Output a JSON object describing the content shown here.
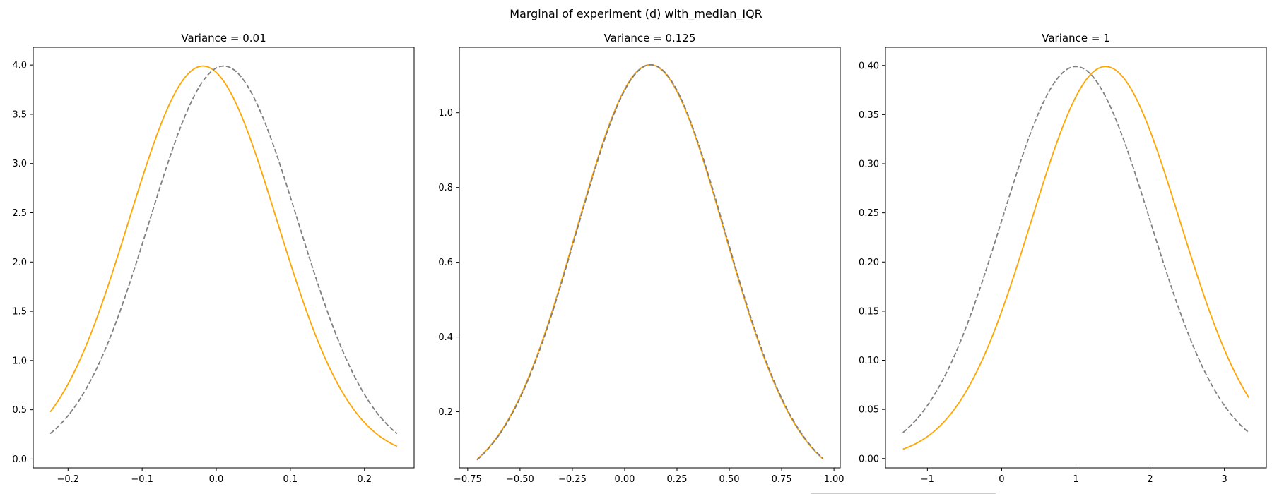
{
  "figure": {
    "suptitle": "Marginal of experiment (d) with_median_IQR"
  },
  "colors": {
    "primary_series": "#ffa500",
    "reference_series": "#808080",
    "axes": "#000000",
    "background": "#ffffff"
  },
  "chart_data": [
    {
      "type": "line",
      "title": "Variance = 0.01",
      "xlabel": "",
      "ylabel": "",
      "xlim": [
        -0.247,
        0.267
      ],
      "ylim": [
        -0.09,
        4.18
      ],
      "xticks": [
        -0.2,
        -0.1,
        0.0,
        0.1,
        0.2
      ],
      "xtick_labels": [
        "−0.2",
        "−0.1",
        "0.0",
        "0.1",
        "0.2"
      ],
      "yticks": [
        0.0,
        0.5,
        1.0,
        1.5,
        2.0,
        2.5,
        3.0,
        3.5,
        4.0
      ],
      "ytick_labels": [
        "0.0",
        "0.5",
        "1.0",
        "1.5",
        "2.0",
        "2.5",
        "3.0",
        "3.5",
        "4.0"
      ],
      "grid": false,
      "series": [
        {
          "color": "#ffa500",
          "style": "solid",
          "distribution": "normal",
          "mean": -0.018,
          "sd": 0.1,
          "x_range": [
            -0.224,
            0.244
          ]
        },
        {
          "color": "#808080",
          "style": "dashed",
          "distribution": "normal",
          "mean": 0.01,
          "sd": 0.1,
          "x_range": [
            -0.224,
            0.244
          ]
        }
      ]
    },
    {
      "type": "line",
      "title": "Variance = 0.125",
      "xlabel": "",
      "ylabel": "",
      "xlim": [
        -0.79,
        1.03
      ],
      "ylim": [
        0.05,
        1.175
      ],
      "xticks": [
        -0.75,
        -0.5,
        -0.25,
        0.0,
        0.25,
        0.5,
        0.75,
        1.0
      ],
      "xtick_labels": [
        "−0.75",
        "−0.50",
        "−0.25",
        "0.00",
        "0.25",
        "0.50",
        "0.75",
        "1.00"
      ],
      "yticks": [
        0.2,
        0.4,
        0.6,
        0.8,
        1.0
      ],
      "ytick_labels": [
        "0.2",
        "0.4",
        "0.6",
        "0.8",
        "1.0"
      ],
      "grid": false,
      "series": [
        {
          "color": "#ffa500",
          "style": "solid",
          "distribution": "normal",
          "mean": 0.122,
          "sd": 0.3536,
          "x_range": [
            -0.706,
            0.948
          ]
        },
        {
          "color": "#808080",
          "style": "dashed",
          "distribution": "normal",
          "mean": 0.125,
          "sd": 0.3536,
          "x_range": [
            -0.706,
            0.948
          ]
        }
      ]
    },
    {
      "type": "line",
      "title": "Variance = 1",
      "xlabel": "",
      "ylabel": "",
      "xlim": [
        -1.565,
        3.565
      ],
      "ylim": [
        -0.0095,
        0.4185
      ],
      "xticks": [
        -1,
        0,
        1,
        2,
        3
      ],
      "xtick_labels": [
        "−1",
        "0",
        "1",
        "2",
        "3"
      ],
      "yticks": [
        0.0,
        0.05,
        0.1,
        0.15,
        0.2,
        0.25,
        0.3,
        0.35,
        0.4
      ],
      "ytick_labels": [
        "0.00",
        "0.05",
        "0.10",
        "0.15",
        "0.20",
        "0.25",
        "0.30",
        "0.35",
        "0.40"
      ],
      "grid": false,
      "series": [
        {
          "color": "#ffa500",
          "style": "solid",
          "distribution": "normal",
          "mean": 1.4,
          "sd": 1.0,
          "x_range": [
            -1.33,
            3.33
          ]
        },
        {
          "color": "#808080",
          "style": "dashed",
          "distribution": "normal",
          "mean": 1.0,
          "sd": 1.0,
          "x_range": [
            -1.33,
            3.33
          ]
        }
      ]
    }
  ]
}
